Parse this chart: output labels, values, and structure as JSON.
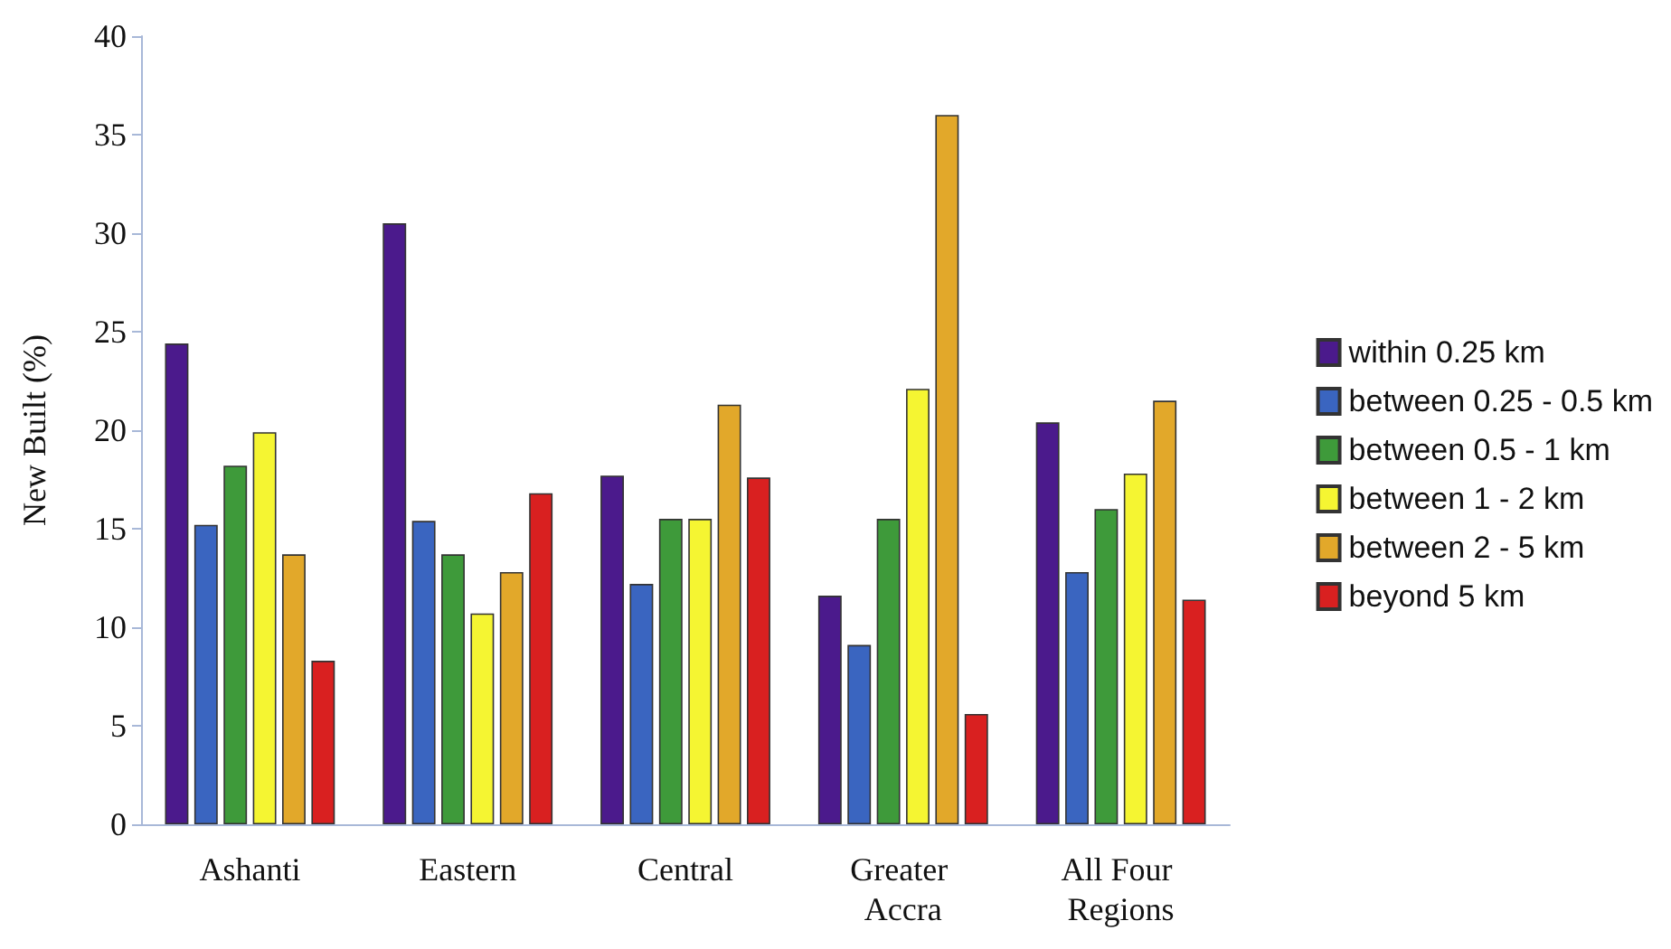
{
  "chart_data": {
    "type": "bar",
    "ylabel": "New Built (%)",
    "categories": [
      "Ashanti",
      "Eastern",
      "Central",
      "Greater Accra",
      "All Four Regions"
    ],
    "series": [
      {
        "name": "within 0.25 km",
        "color": "#4b1a8c",
        "values": [
          24.4,
          30.5,
          17.7,
          11.6,
          20.4
        ]
      },
      {
        "name": "between 0.25 - 0.5 km",
        "color": "#3a65c0",
        "values": [
          15.2,
          15.4,
          12.2,
          9.1,
          12.8
        ]
      },
      {
        "name": "between 0.5 - 1 km",
        "color": "#3e9a3a",
        "values": [
          18.2,
          13.7,
          15.5,
          15.5,
          16.0
        ]
      },
      {
        "name": "between 1 - 2 km",
        "color": "#f5f532",
        "values": [
          19.9,
          10.7,
          15.5,
          22.1,
          17.8
        ]
      },
      {
        "name": "between 2 - 5 km",
        "color": "#e2a82a",
        "values": [
          13.7,
          12.8,
          21.3,
          36.0,
          21.5
        ]
      },
      {
        "name": "beyond 5 km",
        "color": "#d92020",
        "values": [
          8.3,
          16.8,
          17.6,
          5.6,
          11.4
        ]
      }
    ],
    "ylim": [
      0,
      40
    ],
    "yticks": [
      0,
      5,
      10,
      15,
      20,
      25,
      30,
      35,
      40
    ],
    "grid": false,
    "legend": "right"
  }
}
